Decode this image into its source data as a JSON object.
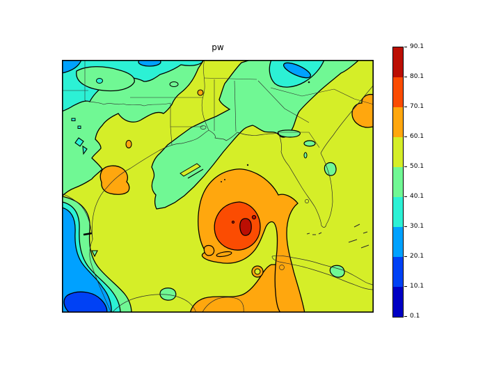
{
  "figure": {
    "title": "pw"
  },
  "palette": {
    "b1": "#0000c4",
    "b2": "#0041f5",
    "b3": "#00a1ff",
    "b4": "#2cf1d5",
    "b5": "#70f894",
    "b6": "#d5ee28",
    "b7": "#ffa70e",
    "b8": "#fb4c02",
    "b9": "#bb0e03",
    "coastline": "#2b2b2b",
    "contour_line": "#000000"
  },
  "colorbar": {
    "bands_top_to_bottom": [
      "#bb0e03",
      "#fb4c02",
      "#ffa70e",
      "#d5ee28",
      "#70f894",
      "#2cf1d5",
      "#00a1ff",
      "#0041f5",
      "#0000c4"
    ],
    "ticks": [
      "90.1",
      "80.1",
      "70.1",
      "60.1",
      "50.1",
      "40.1",
      "30.1",
      "20.1",
      "10.1",
      "0.1"
    ]
  },
  "chart_data": {
    "type": "heatmap",
    "subtype": "filled-contour-map",
    "title": "pw",
    "levels": [
      0.1,
      10.1,
      20.1,
      30.1,
      40.1,
      50.1,
      60.1,
      70.1,
      80.1,
      90.1
    ],
    "band_colors_low_to_high": [
      "#0000c4",
      "#0041f5",
      "#00a1ff",
      "#2cf1d5",
      "#70f894",
      "#d5ee28",
      "#ffa70e",
      "#fb4c02",
      "#bb0e03"
    ],
    "colormap": "jet (9 discrete bands)",
    "colorbar_tick_labels": [
      "90.1",
      "80.1",
      "70.1",
      "60.1",
      "50.1",
      "40.1",
      "30.1",
      "20.1",
      "10.1",
      "0.1"
    ],
    "axis_tick_labels": "none (plain black frame, no x/y ticks)",
    "legend_position": "vertical colorbar, right side",
    "features": [
      "hurricane-like maximum in central Gulf of Mexico: 70.1-80.1 ring with small 80.1-90.1 core",
      "60.1-70.1 orange shield around storm with spiral arm extending south to bottom edge (Yucatan/Caribbean)",
      "narrow 50.1-60.1 notch cutting into storm from the south",
      "background 50.1-60.1 over most of domain (Texas, Gulf, Florida, Atlantic)",
      "40.1-50.1 green over west Texas/New Mexico, lower Midwest and a tongue down through Louisiana/Mississippi",
      "30.1-40.1 cyan band along northern edge with 20.1-30.1 blue pockets (NW corner, top middle, top right)",
      "dry 0.1-30.1 air over NW Mexico along left edge with 10.1-20.1 core at bottom-left",
      "60.1-70.1 blob on south Texas coast, small 60.1-70.1 blob off Atlantic coast at right edge",
      "small 40.1-50.1 blobs over central Florida, Cuba, and south of the Rio Grande delta"
    ]
  }
}
